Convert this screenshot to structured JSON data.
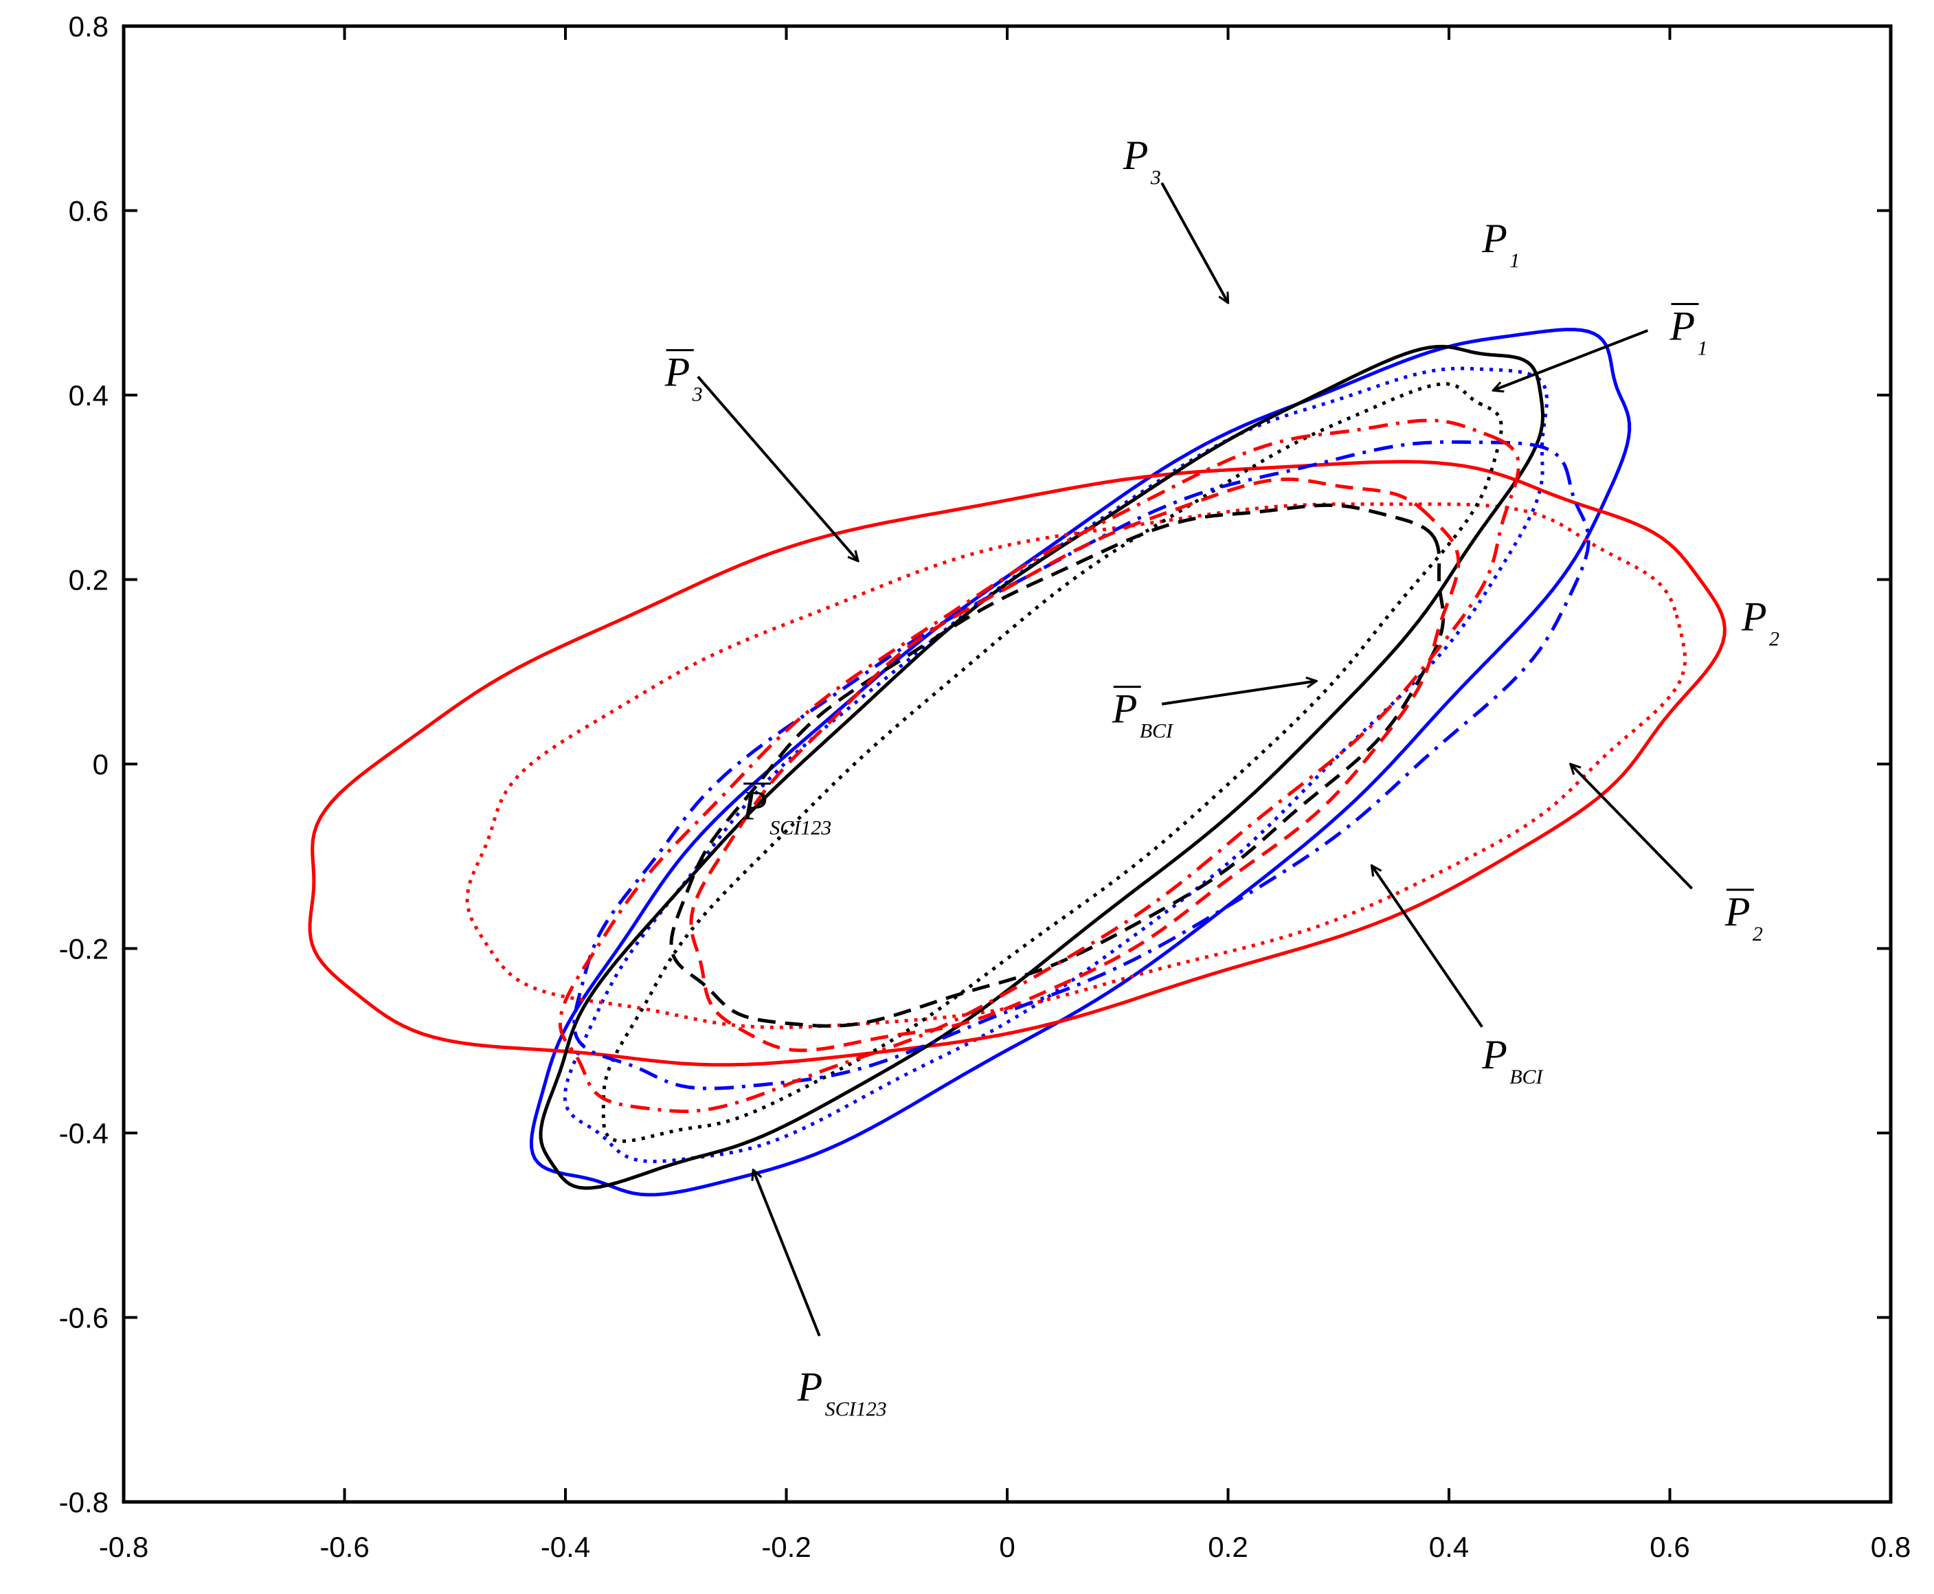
{
  "chart_data": {
    "type": "line",
    "xlim": [
      -0.8,
      0.8
    ],
    "ylim": [
      -0.8,
      0.8
    ],
    "xticks": [
      "-0.8",
      "-0.6",
      "-0.4",
      "-0.2",
      "0",
      "0.2",
      "0.4",
      "0.6",
      "0.8"
    ],
    "yticks": [
      "-0.8",
      "-0.6",
      "-0.4",
      "-0.2",
      "0",
      "0.2",
      "0.4",
      "0.6",
      "0.8"
    ],
    "grid": false,
    "legend": "none",
    "series": [
      {
        "id": "P1",
        "color": "#0000ff",
        "style": "solid",
        "cx": 0.07,
        "cy": 0.0,
        "a": 0.65,
        "b": 0.2,
        "angle": 43
      },
      {
        "id": "P1bar",
        "color": "#0000ff",
        "style": "dotted",
        "cx": 0.05,
        "cy": 0.0,
        "a": 0.59,
        "b": 0.18,
        "angle": 44
      },
      {
        "id": "P2",
        "color": "#ff0000",
        "style": "solid",
        "cx": 0.0,
        "cy": 0.0,
        "a": 0.66,
        "b": 0.28,
        "angle": 16
      },
      {
        "id": "P2bar",
        "color": "#ff0000",
        "style": "dotted",
        "cx": 0.06,
        "cy": 0.0,
        "a": 0.57,
        "b": 0.24,
        "angle": 17
      },
      {
        "id": "P3",
        "color": "#000000",
        "style": "solid",
        "cx": 0.03,
        "cy": 0.0,
        "a": 0.62,
        "b": 0.16,
        "angle": 45
      },
      {
        "id": "P3bar",
        "color": "#000000",
        "style": "dotted",
        "cx": 0.04,
        "cy": 0.0,
        "a": 0.56,
        "b": 0.13,
        "angle": 45
      },
      {
        "id": "PBCI",
        "color": "#0000ff",
        "style": "dashdot",
        "cx": 0.07,
        "cy": 0.0,
        "a": 0.54,
        "b": 0.2,
        "angle": 35
      },
      {
        "id": "PBCIbar",
        "color": "#000000",
        "style": "dashed",
        "cx": 0.05,
        "cy": 0.0,
        "a": 0.41,
        "b": 0.18,
        "angle": 36
      },
      {
        "id": "PSCI123",
        "color": "#ff0000",
        "style": "dashdot",
        "cx": 0.03,
        "cy": 0.0,
        "a": 0.54,
        "b": 0.18,
        "angle": 40
      },
      {
        "id": "PSCI123bar",
        "color": "#ff0000",
        "style": "dashed",
        "cx": 0.06,
        "cy": 0.0,
        "a": 0.42,
        "b": 0.19,
        "angle": 40
      }
    ],
    "annotations": [
      {
        "id": "P3",
        "main": "P",
        "sub": "3",
        "bar": false,
        "x": 0.105,
        "y": 0.645,
        "arrow_from": [
          0.14,
          0.63
        ],
        "arrow_to": [
          0.2,
          0.5
        ]
      },
      {
        "id": "P1",
        "main": "P",
        "sub": "1",
        "bar": false,
        "x": 0.43,
        "y": 0.555,
        "arrow_from": null,
        "arrow_to": null
      },
      {
        "id": "P1bar",
        "main": "P",
        "sub": "1",
        "bar": true,
        "x": 0.6,
        "y": 0.46,
        "arrow_from": [
          0.58,
          0.47
        ],
        "arrow_to": [
          0.44,
          0.405
        ]
      },
      {
        "id": "P3bar",
        "main": "P",
        "sub": "3",
        "bar": true,
        "x": -0.31,
        "y": 0.41,
        "arrow_from": [
          -0.28,
          0.42
        ],
        "arrow_to": [
          -0.135,
          0.22
        ]
      },
      {
        "id": "P2",
        "main": "P",
        "sub": "2",
        "bar": false,
        "x": 0.665,
        "y": 0.145,
        "arrow_from": null,
        "arrow_to": null
      },
      {
        "id": "PBCIbar",
        "main": "P",
        "sub": "BCI",
        "bar": true,
        "x": 0.095,
        "y": 0.045,
        "arrow_from": [
          0.14,
          0.065
        ],
        "arrow_to": [
          0.28,
          0.09
        ]
      },
      {
        "id": "PSCI123bar",
        "main": "P",
        "sub": "SCI123",
        "bar": true,
        "x": -0.24,
        "y": -0.06,
        "arrow_from": null,
        "arrow_to": null
      },
      {
        "id": "P2bar",
        "main": "P",
        "sub": "2",
        "bar": true,
        "x": 0.65,
        "y": -0.175,
        "arrow_from": [
          0.62,
          -0.135
        ],
        "arrow_to": [
          0.51,
          0.0
        ]
      },
      {
        "id": "PBCI",
        "main": "P",
        "sub": "BCI",
        "bar": false,
        "x": 0.43,
        "y": -0.33,
        "arrow_from": [
          0.43,
          -0.285
        ],
        "arrow_to": [
          0.33,
          -0.11
        ]
      },
      {
        "id": "PSCI123",
        "main": "P",
        "sub": "SCI123",
        "bar": false,
        "x": -0.19,
        "y": -0.69,
        "arrow_from": [
          -0.17,
          -0.62
        ],
        "arrow_to": [
          -0.23,
          -0.44
        ]
      }
    ]
  }
}
